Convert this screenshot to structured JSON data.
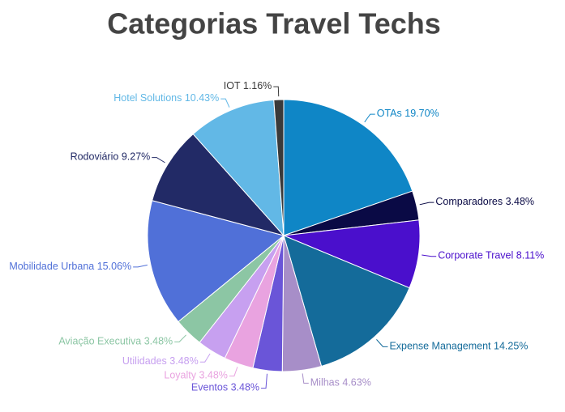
{
  "chart_data": {
    "type": "pie",
    "title": "Categorias Travel Techs",
    "categories": [
      "OTAs",
      "Comparadores",
      "Corporate Travel",
      "Expense Management",
      "Milhas",
      "Eventos",
      "Loyalty",
      "Utilidades",
      "Aviação Executiva",
      "Mobilidade Urbana",
      "Rodoviário",
      "Hotel Solutions",
      "IOT"
    ],
    "values": [
      19.7,
      3.48,
      8.11,
      14.25,
      4.63,
      3.48,
      3.48,
      3.48,
      3.48,
      15.06,
      9.27,
      10.43,
      1.16
    ],
    "value_labels": [
      "19.70%",
      "3.48%",
      "8.11%",
      "14.25%",
      "4.63%",
      "3.48%",
      "3.48%",
      "3.48%",
      "3.48%",
      "15.06%",
      "9.27%",
      "10.43%",
      "1.16%"
    ],
    "colors": [
      "#0f86c6",
      "#0a0a45",
      "#4a0fcc",
      "#146b9a",
      "#a78ec8",
      "#6a55d8",
      "#e9a3e0",
      "#c7a0f0",
      "#8cc6a4",
      "#5070d8",
      "#222a66",
      "#62b8e6",
      "#3a3a3a"
    ]
  }
}
